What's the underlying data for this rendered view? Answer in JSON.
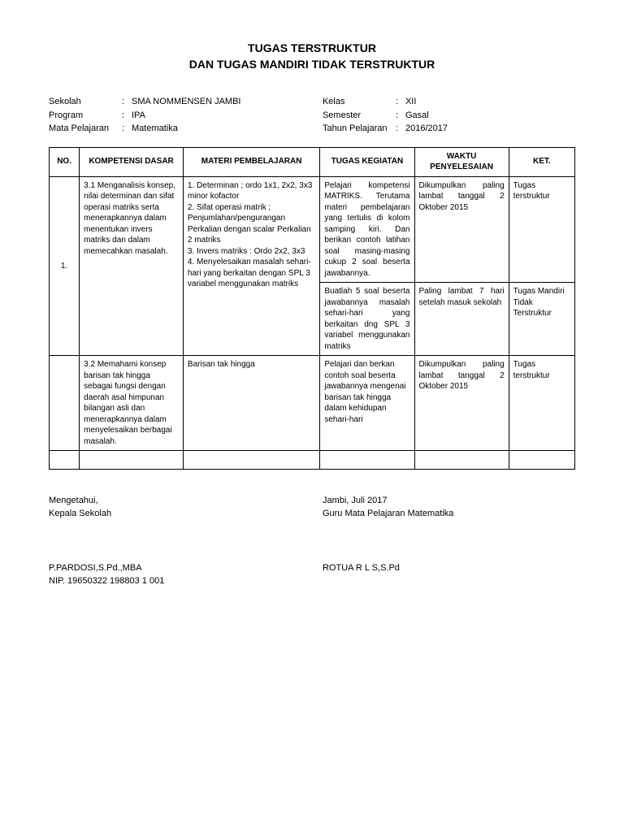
{
  "title_l1": "TUGAS TERSTRUKTUR",
  "title_l2": "DAN TUGAS MANDIRI TIDAK TERSTRUKTUR",
  "meta": {
    "sekolah_l": "Sekolah",
    "sekolah_v": "SMA NOMMENSEN JAMBI",
    "program_l": "Program",
    "program_v": "IPA",
    "mapel_l": "Mata Pelajaran",
    "mapel_v": "Matematika",
    "kelas_l": "Kelas",
    "kelas_v": "XII",
    "semester_l": "Semester",
    "semester_v": "Gasal",
    "tahun_l": "Tahun Pelajaran",
    "tahun_v": "2016/2017"
  },
  "headers": {
    "no": "NO.",
    "kd": "KOMPETENSI DASAR",
    "materi": "MATERI PEMBELAJARAN",
    "tugas": "TUGAS KEGIATAN",
    "waktu": "WAKTU PENYELESAIAN",
    "ket": "KET."
  },
  "r1": {
    "no": "1.",
    "kd": "3.1 Menganalisis konsep, nilai determinan dan sifat operasi matriks serta menerapkannya dalam menentukan invers matriks dan dalam memecahkan masalah.",
    "materi": "1.      Determinan ; ordo 1x1, 2x2, 3x3 minor kofactor\n2.      Sifat operasi matrik ; Penjumlahan/pengurangan Perkalian dengan scalar Perkalian 2 matriks\n3.      Invers matriks : Ordo 2x2, 3x3\n4.      Menyelesaikan masalah sehari-hari yang berkaitan dengan SPL 3 variabel menggunakan matriks",
    "tugas_a": "Pelajari kompetensi MATRIKS. Terutama materi pembelajaran yang tertulis di kolom samping kiri. Dan berikan contoh latihan soal masing-masing cukup 2 soal beserta jawabannya.",
    "waktu_a": "Dikumpulkan paling lambat tanggal 2 Oktober 2015",
    "ket_a": "Tugas terstruktur",
    "tugas_b": "Buatlah 5 soal beserta jawabannya masalah sehari-hari yang berkaitan dng SPL 3 variabel menggunakan matriks",
    "waktu_b": "Paling lambat 7 hari setelah masuk sekolah",
    "ket_b": "Tugas Mandiri Tidak Terstruktur"
  },
  "r2": {
    "kd": "3.2   Memahami konsep barisan tak hingga sebagai fungsi dengan daerah asal himpunan bilangan asli dan menerapkannya dalam menyelesaikan berbagai masalah.",
    "materi": "Barisan tak hingga",
    "tugas": "Pelajari dan berkan contoh soal beserta jawabannya mengenai barisan tak hingga dalam kehidupan sehari-hari",
    "waktu": "Dikumpulkan paling lambat tanggal 2 Oktober 2015",
    "ket": "Tugas terstruktur"
  },
  "footer": {
    "left1": "Mengetahui,",
    "left2": "Kepala Sekolah",
    "left3": "P.PARDOSI,S.Pd.,MBA",
    "left4": "NIP. 19650322 198803 1 001",
    "right1": "Jambi,    Juli 2017",
    "right2": "Guru Mata Pelajaran Matematika",
    "right3": "ROTUA R L S,S.Pd"
  }
}
